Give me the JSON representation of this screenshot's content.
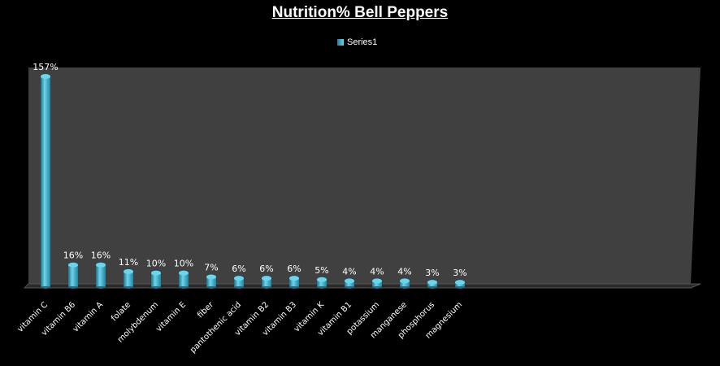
{
  "chart_data": {
    "type": "bar",
    "title": "Nutrition% Bell Peppers",
    "legend": {
      "position": "top",
      "entries": [
        "Series1"
      ]
    },
    "series": [
      {
        "name": "Series1",
        "values": [
          157,
          16,
          16,
          11,
          10,
          10,
          7,
          6,
          6,
          6,
          5,
          4,
          4,
          4,
          3,
          3
        ],
        "labels": [
          "157%",
          "16%",
          "16%",
          "11%",
          "10%",
          "10%",
          "7%",
          "6%",
          "6%",
          "6%",
          "5%",
          "4%",
          "4%",
          "4%",
          "3%",
          "3%"
        ]
      }
    ],
    "categories": [
      "vitamin C",
      "vitamin B6",
      "vitamin A",
      "folate",
      "molybdenum",
      "vitamin E",
      "fiber",
      "pantothenic acid",
      "vitamin B2",
      "vitamin B3",
      "vitamin K",
      "vitamin B1",
      "potassium",
      "manganese",
      "phosphorus",
      "magnesium"
    ],
    "ylim": [
      0,
      157
    ],
    "grid": false,
    "colors": {
      "bar_light": "#6fd3ea",
      "bar_mid": "#3fb3d0",
      "bar_dark": "#1a7089",
      "back_wall": "#404040",
      "floor": "#2a2a2a",
      "text": "#ffffff",
      "background": "#000000"
    }
  }
}
